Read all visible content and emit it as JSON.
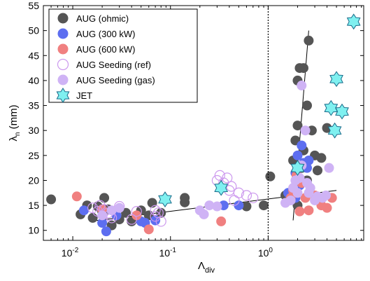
{
  "chart_data": {
    "type": "scatter",
    "title": "",
    "xlabel": "Λdiv",
    "ylabel": "λn (mm)",
    "xscale": "log",
    "xlim": [
      0.005,
      9.5
    ],
    "ylim": [
      8,
      55
    ],
    "grid": false,
    "legend_position": "top-left",
    "x_ticks": [
      {
        "value": 0.01,
        "base": "10",
        "exp": "-2"
      },
      {
        "value": 0.1,
        "base": "10",
        "exp": "-1"
      },
      {
        "value": 1,
        "base": "10",
        "exp": "0"
      }
    ],
    "y_ticks": [
      10,
      15,
      20,
      25,
      30,
      35,
      40,
      45,
      50,
      55
    ],
    "vline": {
      "x": 1.0,
      "style": "dotted"
    },
    "fit_lines": [
      {
        "points": [
          [
            0.015,
            11.8
          ],
          [
            5.0,
            18.0
          ]
        ]
      },
      {
        "points": [
          [
            1.8,
            12.0
          ],
          [
            2.6,
            50.0
          ]
        ]
      }
    ],
    "series": [
      {
        "name": "AUG (ohmic)",
        "color": "#555555",
        "marker": "filled",
        "points": [
          [
            0.006,
            16.2
          ],
          [
            0.012,
            13.2
          ],
          [
            0.014,
            15.0
          ],
          [
            0.016,
            12.5
          ],
          [
            0.018,
            14.8
          ],
          [
            0.02,
            13.8
          ],
          [
            0.021,
            16.5
          ],
          [
            0.023,
            14.2
          ],
          [
            0.025,
            11.0
          ],
          [
            0.03,
            12.2
          ],
          [
            0.035,
            13.5
          ],
          [
            0.04,
            11.8
          ],
          [
            0.045,
            12.8
          ],
          [
            0.05,
            14.0
          ],
          [
            0.06,
            13.0
          ],
          [
            0.065,
            15.5
          ],
          [
            0.08,
            13.5
          ],
          [
            0.14,
            15.6
          ],
          [
            0.14,
            16.5
          ],
          [
            0.6,
            14.8
          ],
          [
            0.9,
            15.0
          ],
          [
            1.05,
            20.8
          ],
          [
            1.5,
            17.0
          ],
          [
            1.8,
            24.0
          ],
          [
            1.9,
            28.0
          ],
          [
            2.0,
            31.0
          ],
          [
            2.0,
            40.0
          ],
          [
            2.1,
            42.5
          ],
          [
            2.2,
            22.5
          ],
          [
            2.3,
            26.0
          ],
          [
            2.3,
            42.5
          ],
          [
            2.5,
            35.0
          ],
          [
            2.5,
            20.0
          ],
          [
            2.6,
            48.0
          ],
          [
            2.8,
            30.0
          ],
          [
            3.0,
            25.0
          ],
          [
            3.2,
            22.0
          ],
          [
            3.5,
            24.5
          ],
          [
            4.0,
            30.5
          ],
          [
            2.0,
            15.0
          ]
        ]
      },
      {
        "name": "AUG (300 kW)",
        "color": "#5d6ef0",
        "marker": "filled",
        "points": [
          [
            0.013,
            14.0
          ],
          [
            0.02,
            11.5
          ],
          [
            0.022,
            9.8
          ],
          [
            0.028,
            13.0
          ],
          [
            0.05,
            11.8
          ],
          [
            0.055,
            11.5
          ],
          [
            0.07,
            12.0
          ],
          [
            0.35,
            15.0
          ],
          [
            0.5,
            15.0
          ],
          [
            1.6,
            17.5
          ],
          [
            1.8,
            18.0
          ],
          [
            1.9,
            21.5
          ],
          [
            2.0,
            25.0
          ],
          [
            2.2,
            27.0
          ],
          [
            2.3,
            23.5
          ],
          [
            2.5,
            22.5
          ],
          [
            2.6,
            24.0
          ],
          [
            2.1,
            19.0
          ],
          [
            1.9,
            16.5
          ]
        ]
      },
      {
        "name": "AUG (600 kW)",
        "color": "#f08080",
        "marker": "filled",
        "points": [
          [
            0.011,
            16.8
          ],
          [
            0.02,
            14.2
          ],
          [
            0.045,
            13.0
          ],
          [
            0.06,
            10.2
          ],
          [
            0.33,
            11.8
          ],
          [
            1.7,
            16.5
          ],
          [
            1.8,
            18.0
          ],
          [
            1.95,
            21.0
          ],
          [
            2.1,
            13.8
          ],
          [
            2.2,
            19.5
          ],
          [
            2.4,
            16.5
          ],
          [
            2.6,
            14.0
          ],
          [
            3.0,
            17.0
          ],
          [
            3.5,
            15.0
          ],
          [
            4.0,
            14.5
          ],
          [
            4.5,
            16.5
          ]
        ]
      },
      {
        "name": "AUG Seeding (ref)",
        "color": "#cc99ee",
        "marker": "open",
        "points": [
          [
            0.016,
            14.5
          ],
          [
            0.018,
            13.8
          ],
          [
            0.019,
            15.0
          ],
          [
            0.021,
            14.2
          ],
          [
            0.023,
            13.5
          ],
          [
            0.024,
            13.0
          ],
          [
            0.025,
            12.5
          ],
          [
            0.03,
            14.8
          ],
          [
            0.04,
            12.2
          ],
          [
            0.045,
            13.8
          ],
          [
            0.07,
            14.0
          ],
          [
            0.07,
            12.8
          ],
          [
            0.075,
            13.5
          ],
          [
            0.08,
            11.8
          ],
          [
            0.3,
            20.0
          ],
          [
            0.32,
            21.0
          ],
          [
            0.35,
            19.5
          ],
          [
            0.38,
            20.5
          ],
          [
            0.42,
            18.8
          ],
          [
            0.5,
            17.5
          ],
          [
            0.6,
            17.0
          ],
          [
            0.7,
            16.5
          ],
          [
            0.4,
            18.0
          ],
          [
            0.45,
            16.0
          ]
        ]
      },
      {
        "name": "AUG Seeding (gas)",
        "color": "#cfb3f5",
        "marker": "filled",
        "points": [
          [
            0.02,
            13.0
          ],
          [
            0.025,
            14.0
          ],
          [
            0.03,
            14.5
          ],
          [
            0.2,
            14.0
          ],
          [
            0.22,
            13.2
          ],
          [
            0.25,
            15.0
          ],
          [
            0.3,
            14.8
          ],
          [
            1.5,
            15.5
          ],
          [
            1.8,
            18.5
          ],
          [
            1.9,
            20.0
          ],
          [
            2.0,
            17.5
          ],
          [
            2.1,
            20.5
          ],
          [
            2.2,
            23.0
          ],
          [
            2.2,
            39.0
          ],
          [
            2.4,
            30.0
          ],
          [
            2.5,
            19.5
          ],
          [
            2.7,
            18.5
          ],
          [
            3.0,
            16.0
          ],
          [
            3.2,
            16.8
          ],
          [
            3.6,
            16.5
          ],
          [
            3.9,
            17.0
          ],
          [
            4.2,
            22.5
          ],
          [
            1.7,
            16.0
          ],
          [
            2.6,
            17.5
          ]
        ]
      },
      {
        "name": "JET",
        "color": "#7ff0f0",
        "marker": "star",
        "points": [
          [
            0.088,
            16.2
          ],
          [
            0.33,
            18.5
          ],
          [
            2.0,
            22.5
          ],
          [
            4.4,
            34.5
          ],
          [
            4.8,
            30.0
          ],
          [
            5.0,
            40.3
          ],
          [
            5.7,
            33.8
          ],
          [
            7.5,
            51.8
          ]
        ]
      }
    ]
  }
}
